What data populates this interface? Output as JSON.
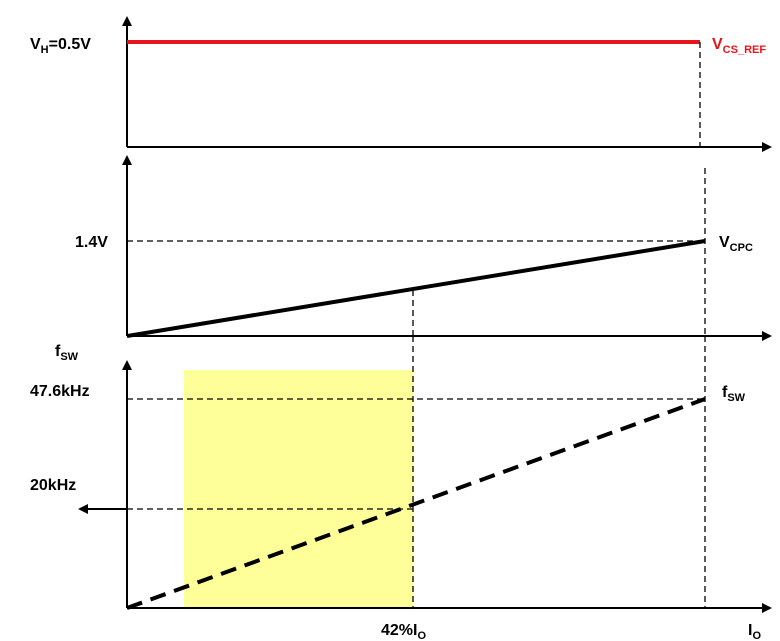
{
  "colors": {
    "axis": "#000000",
    "vcs_line": "#e8141c",
    "vcs_label": "#e8141c",
    "highlight": "#ffff99",
    "vcpc_line": "#000000",
    "fsw_line": "#000000"
  },
  "chart_data": [
    {
      "type": "line",
      "panel": "top",
      "series": [
        {
          "name": "VCS_REF",
          "x": [
            0,
            100
          ],
          "values": [
            0.5,
            0.5
          ],
          "style": "solid"
        }
      ],
      "y_ticks": [
        {
          "value": 0.5,
          "label_main": "V",
          "label_sub": "H",
          "label_rest": "=0.5V"
        }
      ],
      "series_label": {
        "main": "V",
        "sub": "CS_REF"
      },
      "xlim": [
        0,
        100
      ],
      "ylim": [
        0,
        0.6
      ],
      "grid": false
    },
    {
      "type": "line",
      "panel": "middle",
      "series": [
        {
          "name": "VCPC",
          "x": [
            0,
            100
          ],
          "values": [
            0,
            1.4
          ],
          "style": "solid"
        }
      ],
      "y_ticks": [
        {
          "value": 1.4,
          "label": "1.4V"
        }
      ],
      "series_label": {
        "main": "V",
        "sub": "CPC"
      },
      "marker_x": 42,
      "xlim": [
        0,
        100
      ],
      "ylim": [
        0,
        2.2
      ],
      "grid": false
    },
    {
      "type": "line",
      "panel": "bottom",
      "series": [
        {
          "name": "fSW",
          "x": [
            0,
            100
          ],
          "values": [
            0,
            47.6
          ],
          "style": "dashed"
        }
      ],
      "y_axis_label": {
        "main": "f",
        "sub": "SW"
      },
      "y_ticks": [
        {
          "value": 47.6,
          "label": "47.6kHz"
        },
        {
          "value": 20,
          "label": "20kHz"
        }
      ],
      "series_label": {
        "main": "f",
        "sub": "SW"
      },
      "x_ticks": [
        {
          "value": 42,
          "label_main": "42%I",
          "label_sub": "O"
        }
      ],
      "x_axis_label": {
        "main": "I",
        "sub": "O"
      },
      "highlight_region": {
        "x": [
          10,
          42
        ],
        "y_top": 53
      },
      "xlim": [
        0,
        100
      ],
      "ylim": [
        0,
        58
      ],
      "grid": false
    }
  ]
}
